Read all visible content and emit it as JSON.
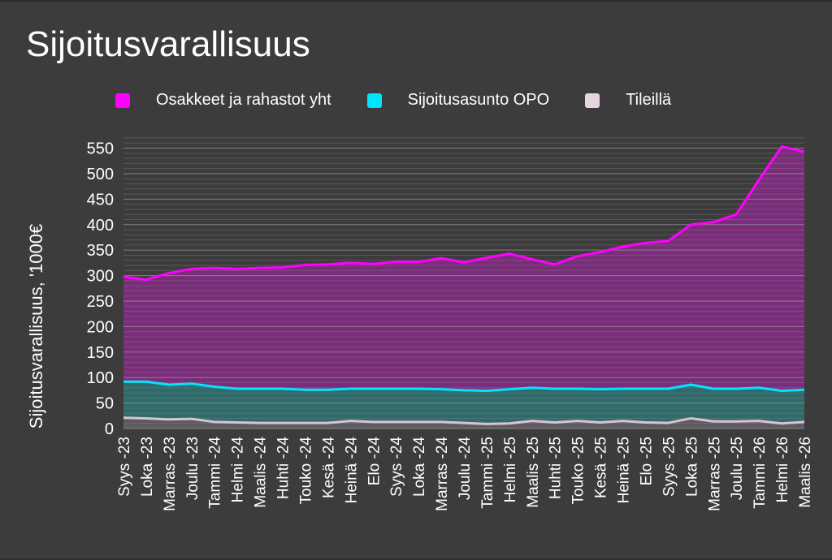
{
  "chart_data": {
    "type": "area",
    "title": "Sijoitusvarallisuus",
    "ylabel": "Sijoitusvarallisuus, '1000€",
    "xlabel": "",
    "ylim": [
      0,
      570
    ],
    "yticks": [
      0,
      50,
      100,
      150,
      200,
      250,
      300,
      350,
      400,
      450,
      500,
      550
    ],
    "grid": true,
    "legend_position": "top",
    "categories": [
      "Syys -23",
      "Loka -23",
      "Marras -23",
      "Joulu -23",
      "Tammi -24",
      "Helmi -24",
      "Maalis -24",
      "Huhti -24",
      "Touko -24",
      "Kesä -24",
      "Heinä -24",
      "Elo -24",
      "Syys -24",
      "Loka -24",
      "Marras -24",
      "Joulu -24",
      "Tammi -25",
      "Helmi -25",
      "Maalis -25",
      "Huhti -25",
      "Touko -25",
      "Kesä -25",
      "Heinä -25",
      "Elo -25",
      "Syys -25",
      "Loka -25",
      "Marras -25",
      "Joulu -25",
      "Tammi -26",
      "Helmi -26",
      "Maalis -26"
    ],
    "series": [
      {
        "name": "Osakkeet ja rahastot yht",
        "color": "#ff00ff",
        "fill": "#7a2d7a",
        "values": [
          298,
          292,
          305,
          313,
          315,
          313,
          315,
          316,
          321,
          322,
          325,
          323,
          327,
          327,
          334,
          326,
          335,
          343,
          332,
          322,
          338,
          346,
          357,
          364,
          368,
          400,
          405,
          420,
          488,
          553,
          543
        ]
      },
      {
        "name": "Sijoitusasunto OPO",
        "color": "#00e5ff",
        "fill": "#2f6b6b",
        "values": [
          92,
          92,
          86,
          88,
          82,
          78,
          78,
          78,
          76,
          76,
          78,
          78,
          78,
          78,
          77,
          75,
          74,
          77,
          80,
          78,
          78,
          77,
          78,
          78,
          78,
          86,
          78,
          78,
          80,
          74,
          76
        ]
      },
      {
        "name": "Tileillä",
        "color": "#d9c3d2",
        "fill": "#5e5b5e",
        "values": [
          21,
          20,
          18,
          19,
          13,
          12,
          11,
          11,
          11,
          11,
          15,
          13,
          13,
          13,
          13,
          11,
          9,
          10,
          15,
          12,
          15,
          12,
          15,
          12,
          11,
          20,
          14,
          14,
          15,
          10,
          13
        ]
      }
    ]
  }
}
